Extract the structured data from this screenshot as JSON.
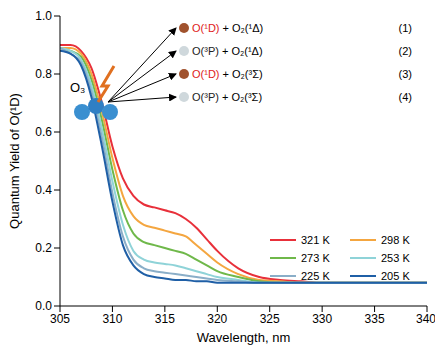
{
  "chart_data": {
    "type": "line",
    "x_label": "Wavelength, nm",
    "y_label": "Quantum Yield of O(¹D)",
    "x": [
      305,
      306,
      307,
      308,
      309,
      310,
      311,
      312,
      313,
      314,
      315,
      316,
      317,
      318,
      319,
      320,
      322,
      324,
      326,
      328,
      330,
      335,
      340
    ],
    "series": [
      {
        "name": "321 K",
        "color": "#e8303a",
        "values": [
          0.9,
          0.9,
          0.88,
          0.82,
          0.7,
          0.55,
          0.44,
          0.38,
          0.35,
          0.34,
          0.33,
          0.32,
          0.3,
          0.27,
          0.23,
          0.19,
          0.13,
          0.1,
          0.09,
          0.085,
          0.08,
          0.08,
          0.08
        ]
      },
      {
        "name": "298 K",
        "color": "#f4a640",
        "values": [
          0.89,
          0.89,
          0.87,
          0.8,
          0.67,
          0.51,
          0.38,
          0.31,
          0.28,
          0.27,
          0.26,
          0.25,
          0.24,
          0.21,
          0.18,
          0.15,
          0.11,
          0.09,
          0.085,
          0.08,
          0.08,
          0.08,
          0.08
        ]
      },
      {
        "name": "273 K",
        "color": "#6fb84a",
        "values": [
          0.89,
          0.88,
          0.86,
          0.78,
          0.64,
          0.47,
          0.33,
          0.25,
          0.22,
          0.21,
          0.2,
          0.19,
          0.18,
          0.16,
          0.14,
          0.12,
          0.1,
          0.085,
          0.08,
          0.08,
          0.08,
          0.08,
          0.08
        ]
      },
      {
        "name": "253 K",
        "color": "#8fd3d8",
        "values": [
          0.89,
          0.88,
          0.85,
          0.76,
          0.61,
          0.43,
          0.28,
          0.19,
          0.16,
          0.15,
          0.145,
          0.14,
          0.13,
          0.12,
          0.11,
          0.1,
          0.09,
          0.08,
          0.08,
          0.08,
          0.08,
          0.08,
          0.08
        ]
      },
      {
        "name": "225 K",
        "color": "#8aaec8",
        "values": [
          0.89,
          0.87,
          0.84,
          0.74,
          0.58,
          0.39,
          0.24,
          0.16,
          0.13,
          0.12,
          0.115,
          0.11,
          0.105,
          0.1,
          0.095,
          0.09,
          0.085,
          0.08,
          0.08,
          0.08,
          0.08,
          0.08,
          0.08
        ]
      },
      {
        "name": "205 K",
        "color": "#1f5fa6",
        "values": [
          0.88,
          0.87,
          0.83,
          0.72,
          0.55,
          0.36,
          0.21,
          0.14,
          0.11,
          0.1,
          0.095,
          0.09,
          0.09,
          0.085,
          0.085,
          0.08,
          0.08,
          0.08,
          0.08,
          0.08,
          0.08,
          0.08,
          0.08
        ]
      }
    ],
    "xlim": [
      305,
      340
    ],
    "xticks": [
      305,
      310,
      315,
      320,
      325,
      330,
      335,
      340
    ],
    "ylim": [
      0,
      1
    ],
    "yticks": [
      {
        "value": 0,
        "label": "0.0"
      },
      {
        "value": 0.2,
        "label": "0.2"
      },
      {
        "value": 0.4,
        "label": "0.4"
      },
      {
        "value": 0.6,
        "label": "0.6"
      },
      {
        "value": 0.8,
        "label": "0.8"
      },
      {
        "value": 1,
        "label": "1.0"
      }
    ],
    "legend": "right",
    "annotations": {
      "molecule": "O₃",
      "channels": [
        {
          "text": [
            "O(¹D)",
            " + O₂(¹Δ)"
          ],
          "color": "#e02020",
          "label": "(1)"
        },
        {
          "text": [
            "O(³P)",
            " + O₂(¹Δ)"
          ],
          "color": "#222222",
          "label": "(2)"
        },
        {
          "text": [
            "O(¹D)",
            " + O₂(³Σ)"
          ],
          "color": "#e02020",
          "label": "(3)"
        },
        {
          "text": [
            "O(³P)",
            " + O₂(³Σ)"
          ],
          "color": "#222222",
          "label": "(4)"
        }
      ]
    }
  }
}
